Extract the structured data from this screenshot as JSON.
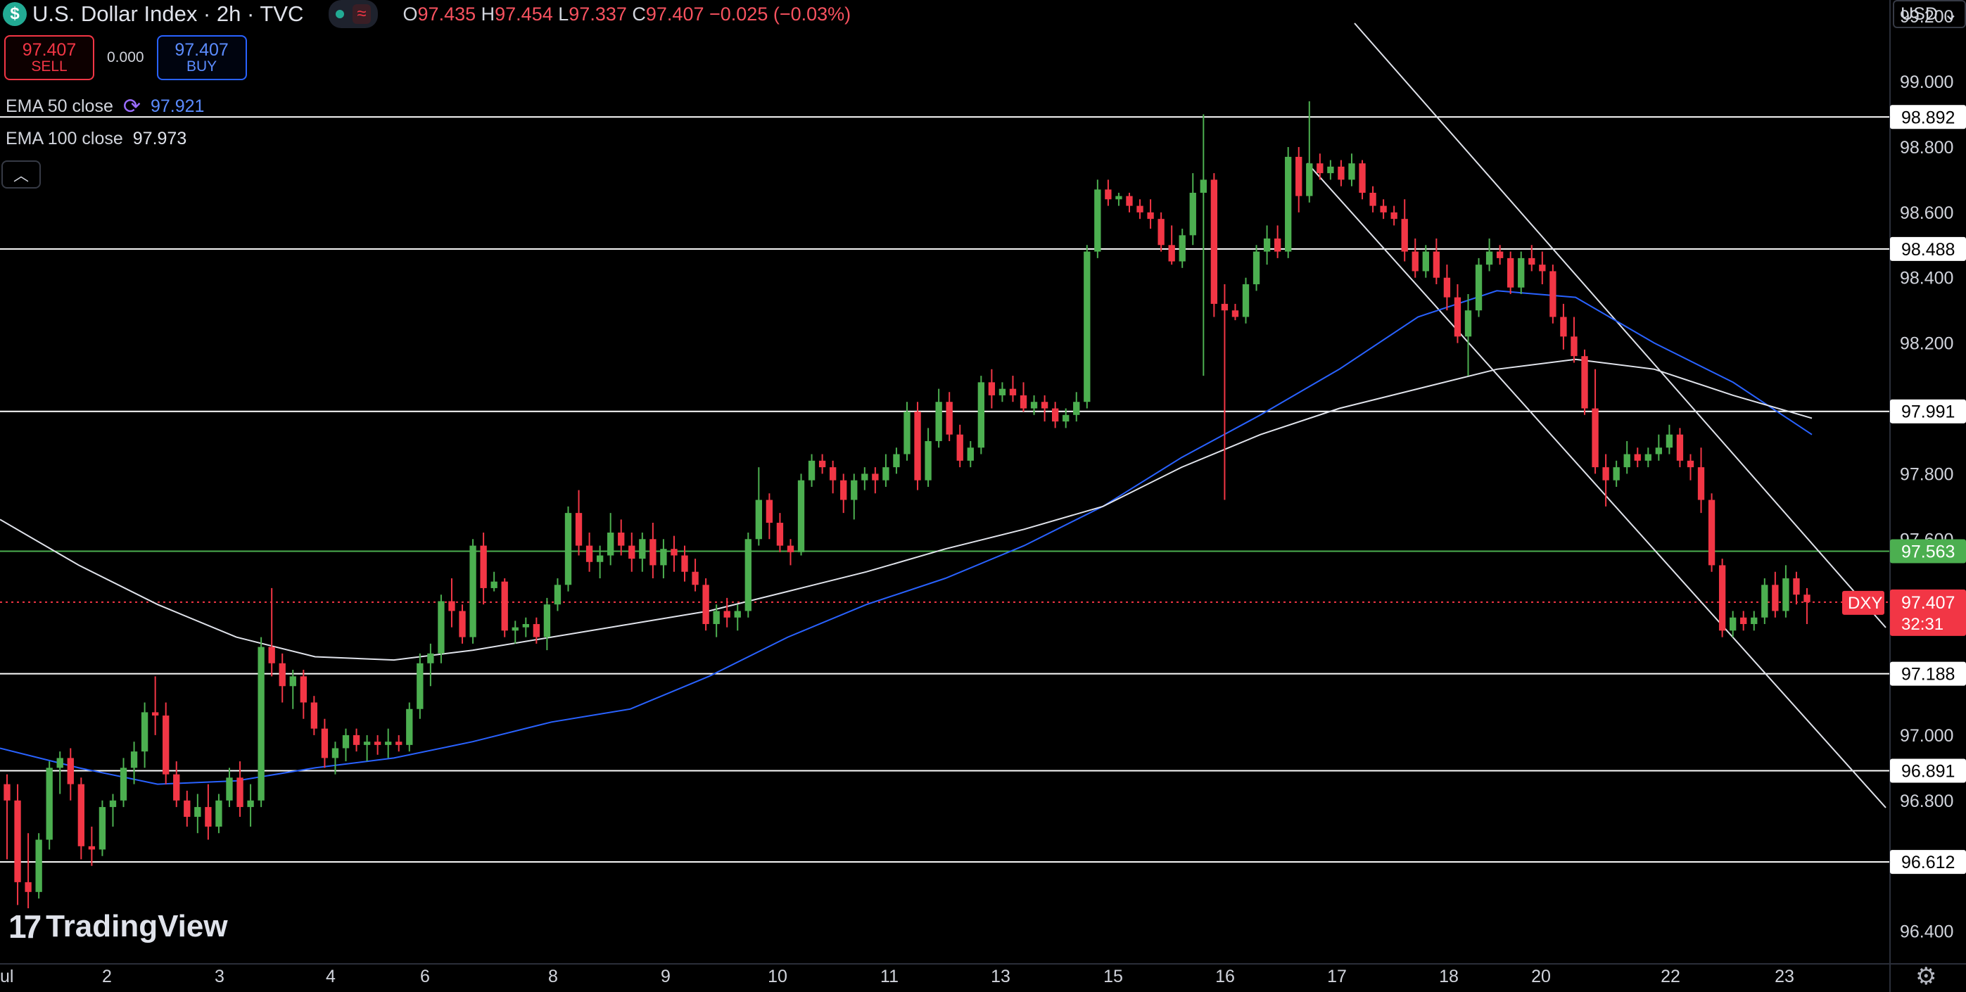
{
  "header": {
    "symbol_glyph": "$",
    "title": "U.S. Dollar Index · 2h · TVC",
    "ohlc": {
      "o_label": "O",
      "o_value": "97.435",
      "h_label": "H",
      "h_value": "97.454",
      "l_label": "L",
      "l_value": "97.337",
      "c_label": "C",
      "c_value": "97.407",
      "change": "−0.025 (−0.03%)"
    }
  },
  "trade": {
    "sell_price": "97.407",
    "sell_label": "SELL",
    "spread": "0.000",
    "buy_price": "97.407",
    "buy_label": "BUY"
  },
  "indicators": {
    "ema50_label": "EMA 50 close",
    "ema50_value": "97.921",
    "ema100_label": "EMA 100 close",
    "ema100_value": "97.973"
  },
  "currency_menu": "USD",
  "logo_text": "TradingView",
  "colors": {
    "up": "#4caf50",
    "down": "#f23645",
    "ema50": "#2962ff",
    "ema100": "#e0e3eb",
    "level_line": "#ffffff",
    "green_level": "#4caf50",
    "price_line": "#f23645"
  },
  "chart_data": {
    "type": "candlestick",
    "timeframe": "2h",
    "ylim": [
      96.3,
      99.25
    ],
    "y_ticks": [
      "96.400",
      "96.800",
      "97.000",
      "97.200",
      "97.400",
      "97.600",
      "97.800",
      "98.200",
      "98.400",
      "98.600",
      "98.800",
      "99.000",
      "99.200"
    ],
    "x_ticks": [
      "ul",
      "2",
      "3",
      "4",
      "6",
      "8",
      "9",
      "10",
      "11",
      "13",
      "15",
      "16",
      "17",
      "18",
      "20",
      "22",
      "23"
    ],
    "levels": [
      "98.892",
      "98.488",
      "97.991",
      "97.188",
      "96.891",
      "96.612"
    ],
    "green_level": "97.563",
    "last_price": {
      "symbol": "DXY",
      "price": "97.407",
      "countdown": "32:31"
    },
    "candles": [
      [
        96.85,
        96.88,
        96.62,
        96.8
      ],
      [
        96.8,
        96.85,
        96.48,
        96.55
      ],
      [
        96.55,
        96.7,
        96.47,
        96.52
      ],
      [
        96.52,
        96.7,
        96.5,
        96.68
      ],
      [
        96.68,
        96.92,
        96.65,
        96.9
      ],
      [
        96.9,
        96.95,
        96.82,
        96.93
      ],
      [
        96.93,
        96.96,
        96.8,
        96.85
      ],
      [
        96.85,
        96.87,
        96.62,
        96.66
      ],
      [
        96.66,
        96.72,
        96.6,
        96.65
      ],
      [
        96.65,
        96.8,
        96.63,
        96.78
      ],
      [
        96.78,
        96.82,
        96.72,
        96.8
      ],
      [
        96.8,
        96.93,
        96.78,
        96.9
      ],
      [
        96.9,
        96.98,
        96.85,
        96.95
      ],
      [
        96.95,
        97.1,
        96.9,
        97.07
      ],
      [
        97.07,
        97.18,
        97.0,
        97.06
      ],
      [
        97.06,
        97.1,
        96.85,
        96.88
      ],
      [
        96.88,
        96.92,
        96.78,
        96.8
      ],
      [
        96.8,
        96.83,
        96.72,
        96.75
      ],
      [
        96.75,
        96.82,
        96.7,
        96.78
      ],
      [
        96.78,
        96.85,
        96.68,
        96.72
      ],
      [
        96.72,
        96.82,
        96.7,
        96.8
      ],
      [
        96.8,
        96.9,
        96.78,
        96.87
      ],
      [
        96.87,
        96.92,
        96.75,
        96.78
      ],
      [
        96.78,
        96.85,
        96.72,
        96.8
      ],
      [
        96.8,
        97.3,
        96.78,
        97.27
      ],
      [
        97.27,
        97.45,
        97.18,
        97.22
      ],
      [
        97.22,
        97.25,
        97.1,
        97.15
      ],
      [
        97.15,
        97.2,
        97.08,
        97.18
      ],
      [
        97.18,
        97.2,
        97.05,
        97.1
      ],
      [
        97.1,
        97.12,
        97.0,
        97.02
      ],
      [
        97.02,
        97.05,
        96.9,
        96.93
      ],
      [
        96.93,
        96.98,
        96.88,
        96.96
      ],
      [
        96.96,
        97.02,
        96.92,
        97.0
      ],
      [
        97.0,
        97.02,
        96.95,
        96.97
      ],
      [
        96.97,
        97.0,
        96.92,
        96.98
      ],
      [
        96.98,
        97.0,
        96.94,
        96.97
      ],
      [
        96.97,
        97.02,
        96.93,
        96.98
      ],
      [
        96.98,
        97.0,
        96.95,
        96.97
      ],
      [
        96.97,
        97.1,
        96.95,
        97.08
      ],
      [
        97.08,
        97.25,
        97.05,
        97.22
      ],
      [
        97.22,
        97.28,
        97.15,
        97.25
      ],
      [
        97.25,
        97.43,
        97.22,
        97.41
      ],
      [
        97.41,
        97.48,
        97.33,
        97.38
      ],
      [
        97.38,
        97.4,
        97.28,
        97.3
      ],
      [
        97.3,
        97.6,
        97.28,
        97.58
      ],
      [
        97.58,
        97.62,
        97.4,
        97.45
      ],
      [
        97.45,
        97.5,
        97.44,
        97.47
      ],
      [
        97.47,
        97.48,
        97.3,
        97.32
      ],
      [
        97.32,
        97.35,
        97.28,
        97.33
      ],
      [
        97.33,
        97.36,
        97.3,
        97.34
      ],
      [
        97.34,
        97.36,
        97.28,
        97.3
      ],
      [
        97.3,
        97.42,
        97.26,
        97.4
      ],
      [
        97.4,
        97.48,
        97.38,
        97.46
      ],
      [
        97.46,
        97.7,
        97.44,
        97.68
      ],
      [
        97.68,
        97.75,
        97.55,
        97.58
      ],
      [
        97.58,
        97.62,
        97.5,
        97.53
      ],
      [
        97.53,
        97.58,
        97.48,
        97.55
      ],
      [
        97.55,
        97.68,
        97.52,
        97.62
      ],
      [
        97.62,
        97.66,
        97.55,
        97.58
      ],
      [
        97.58,
        97.62,
        97.5,
        97.54
      ],
      [
        97.54,
        97.62,
        97.5,
        97.6
      ],
      [
        97.6,
        97.65,
        97.48,
        97.52
      ],
      [
        97.52,
        97.6,
        97.48,
        97.57
      ],
      [
        97.57,
        97.61,
        97.5,
        97.55
      ],
      [
        97.55,
        97.58,
        97.47,
        97.5
      ],
      [
        97.5,
        97.54,
        97.44,
        97.46
      ],
      [
        97.46,
        97.48,
        97.32,
        97.34
      ],
      [
        97.34,
        97.4,
        97.3,
        97.38
      ],
      [
        97.38,
        97.42,
        97.33,
        97.36
      ],
      [
        97.36,
        97.4,
        97.32,
        97.38
      ],
      [
        97.38,
        97.62,
        97.36,
        97.6
      ],
      [
        97.6,
        97.82,
        97.58,
        97.72
      ],
      [
        97.72,
        97.74,
        97.6,
        97.65
      ],
      [
        97.65,
        97.68,
        97.56,
        97.58
      ],
      [
        97.58,
        97.6,
        97.52,
        97.56
      ],
      [
        97.56,
        97.8,
        97.55,
        97.78
      ],
      [
        97.78,
        97.86,
        97.76,
        97.84
      ],
      [
        97.84,
        97.86,
        97.8,
        97.82
      ],
      [
        97.82,
        97.84,
        97.74,
        97.78
      ],
      [
        97.78,
        97.8,
        97.68,
        97.72
      ],
      [
        97.72,
        97.8,
        97.66,
        97.78
      ],
      [
        97.78,
        97.82,
        97.75,
        97.8
      ],
      [
        97.8,
        97.82,
        97.74,
        97.78
      ],
      [
        97.78,
        97.86,
        97.76,
        97.82
      ],
      [
        97.82,
        97.88,
        97.8,
        97.86
      ],
      [
        97.86,
        98.02,
        97.84,
        97.99
      ],
      [
        97.99,
        98.02,
        97.75,
        97.78
      ],
      [
        97.78,
        97.94,
        97.76,
        97.9
      ],
      [
        97.9,
        98.06,
        97.88,
        98.02
      ],
      [
        98.02,
        98.05,
        97.9,
        97.92
      ],
      [
        97.92,
        97.95,
        97.82,
        97.84
      ],
      [
        97.84,
        97.9,
        97.82,
        97.88
      ],
      [
        97.88,
        98.1,
        97.86,
        98.08
      ],
      [
        98.08,
        98.12,
        98.0,
        98.04
      ],
      [
        98.04,
        98.08,
        98.02,
        98.06
      ],
      [
        98.06,
        98.1,
        98.02,
        98.04
      ],
      [
        98.04,
        98.08,
        97.99,
        98.0
      ],
      [
        98.0,
        98.04,
        97.98,
        98.02
      ],
      [
        98.02,
        98.04,
        97.96,
        98.0
      ],
      [
        98.0,
        98.02,
        97.94,
        97.96
      ],
      [
        97.96,
        98.0,
        97.94,
        97.98
      ],
      [
        97.98,
        98.05,
        97.96,
        98.02
      ],
      [
        98.02,
        98.5,
        98.0,
        98.48
      ],
      [
        98.48,
        98.7,
        98.46,
        98.67
      ],
      [
        98.67,
        98.7,
        98.62,
        98.64
      ],
      [
        98.64,
        98.66,
        98.62,
        98.65
      ],
      [
        98.65,
        98.66,
        98.6,
        98.62
      ],
      [
        98.62,
        98.64,
        98.58,
        98.6
      ],
      [
        98.6,
        98.64,
        98.55,
        98.58
      ],
      [
        98.58,
        98.6,
        98.48,
        98.5
      ],
      [
        98.5,
        98.56,
        98.44,
        98.45
      ],
      [
        98.45,
        98.55,
        98.43,
        98.53
      ],
      [
        98.53,
        98.72,
        98.5,
        98.66
      ],
      [
        98.66,
        98.9,
        98.1,
        98.7
      ],
      [
        98.7,
        98.72,
        98.28,
        98.32
      ],
      [
        98.32,
        98.38,
        97.72,
        98.3
      ],
      [
        98.3,
        98.32,
        98.27,
        98.28
      ],
      [
        98.28,
        98.4,
        98.26,
        98.38
      ],
      [
        98.38,
        98.5,
        98.36,
        98.48
      ],
      [
        98.48,
        98.56,
        98.44,
        98.52
      ],
      [
        98.52,
        98.56,
        98.46,
        98.48
      ],
      [
        98.48,
        98.8,
        98.46,
        98.77
      ],
      [
        98.77,
        98.8,
        98.6,
        98.65
      ],
      [
        98.65,
        98.94,
        98.63,
        98.75
      ],
      [
        98.75,
        98.78,
        98.7,
        98.72
      ],
      [
        98.72,
        98.76,
        98.7,
        98.74
      ],
      [
        98.74,
        98.76,
        98.68,
        98.7
      ],
      [
        98.7,
        98.78,
        98.68,
        98.75
      ],
      [
        98.75,
        98.76,
        98.64,
        98.66
      ],
      [
        98.66,
        98.68,
        98.6,
        98.62
      ],
      [
        98.62,
        98.64,
        98.58,
        98.6
      ],
      [
        98.6,
        98.62,
        98.56,
        98.58
      ],
      [
        98.58,
        98.64,
        98.45,
        98.48
      ],
      [
        98.48,
        98.52,
        98.4,
        98.42
      ],
      [
        98.42,
        98.5,
        98.4,
        98.48
      ],
      [
        98.48,
        98.52,
        98.38,
        98.4
      ],
      [
        98.4,
        98.44,
        98.3,
        98.34
      ],
      [
        98.34,
        98.38,
        98.2,
        98.22
      ],
      [
        98.22,
        98.35,
        98.1,
        98.3
      ],
      [
        98.3,
        98.46,
        98.28,
        98.44
      ],
      [
        98.44,
        98.52,
        98.42,
        98.48
      ],
      [
        98.48,
        98.5,
        98.44,
        98.46
      ],
      [
        98.46,
        98.48,
        98.35,
        98.37
      ],
      [
        98.37,
        98.48,
        98.35,
        98.46
      ],
      [
        98.46,
        98.5,
        98.42,
        98.44
      ],
      [
        98.44,
        98.48,
        98.38,
        98.42
      ],
      [
        98.42,
        98.44,
        98.26,
        98.28
      ],
      [
        98.28,
        98.32,
        98.18,
        98.22
      ],
      [
        98.22,
        98.28,
        98.14,
        98.16
      ],
      [
        98.16,
        98.18,
        97.98,
        98.0
      ],
      [
        98.0,
        98.12,
        97.8,
        97.82
      ],
      [
        97.82,
        97.86,
        97.7,
        97.78
      ],
      [
        97.78,
        97.84,
        97.76,
        97.82
      ],
      [
        97.82,
        97.9,
        97.8,
        97.86
      ],
      [
        97.86,
        97.88,
        97.82,
        97.84
      ],
      [
        97.84,
        97.88,
        97.82,
        97.86
      ],
      [
        97.86,
        97.92,
        97.84,
        97.88
      ],
      [
        97.88,
        97.95,
        97.86,
        97.92
      ],
      [
        97.92,
        97.94,
        97.82,
        97.84
      ],
      [
        97.84,
        97.86,
        97.78,
        97.82
      ],
      [
        97.82,
        97.88,
        97.68,
        97.72
      ],
      [
        97.72,
        97.74,
        97.5,
        97.52
      ],
      [
        97.52,
        97.54,
        97.3,
        97.32
      ],
      [
        97.32,
        97.38,
        97.3,
        97.36
      ],
      [
        97.36,
        97.38,
        97.32,
        97.34
      ],
      [
        97.34,
        97.38,
        97.32,
        97.36
      ],
      [
        97.36,
        97.48,
        97.34,
        97.46
      ],
      [
        97.46,
        97.5,
        97.36,
        97.38
      ],
      [
        97.38,
        97.52,
        97.36,
        97.48
      ],
      [
        97.48,
        97.5,
        97.4,
        97.43
      ],
      [
        97.43,
        97.45,
        97.34,
        97.407
      ]
    ],
    "series": [
      {
        "name": "EMA 50 close",
        "values": [
          96.96,
          96.9,
          96.85,
          96.86,
          96.9,
          96.93,
          96.98,
          97.04,
          97.08,
          97.18,
          97.3,
          97.4,
          97.48,
          97.58,
          97.7,
          97.85,
          97.98,
          98.12,
          98.28,
          98.36,
          98.34,
          98.2,
          98.08,
          97.92
        ]
      },
      {
        "name": "EMA 100 close",
        "values": [
          97.66,
          97.52,
          97.4,
          97.3,
          97.24,
          97.23,
          97.26,
          97.3,
          97.34,
          97.38,
          97.44,
          97.5,
          97.57,
          97.63,
          97.7,
          97.82,
          97.92,
          98.0,
          98.06,
          98.12,
          98.15,
          98.12,
          98.04,
          97.97
        ]
      }
    ]
  }
}
